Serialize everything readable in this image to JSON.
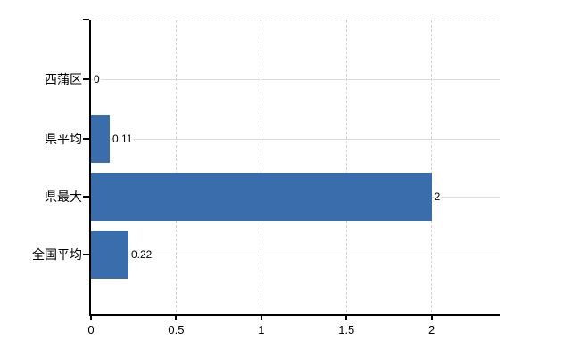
{
  "chart_data": {
    "type": "bar",
    "orientation": "horizontal",
    "title": "",
    "xlabel": "",
    "ylabel": "",
    "categories": [
      "西蒲区",
      "県平均",
      "県最大",
      "全国平均"
    ],
    "values": [
      0,
      0.11,
      2,
      0.22
    ],
    "value_labels": [
      "0",
      "0.11",
      "2",
      "0.22"
    ],
    "x_ticks": [
      0,
      0.5,
      1,
      1.5,
      2
    ],
    "x_tick_labels": [
      "0",
      "0.5",
      "1",
      "1.5",
      "2"
    ],
    "xlim": [
      0,
      2.4
    ],
    "grid": true,
    "legend": false,
    "colors": {
      "bar": "#3a6dac",
      "axis": "#000000",
      "gridline_horizontal": "#d7ddd7",
      "gridline_vertical": "#d2d2d2",
      "plot_top_border": "#d0d0d0",
      "background": "#ffffff",
      "text": "#000000"
    }
  }
}
